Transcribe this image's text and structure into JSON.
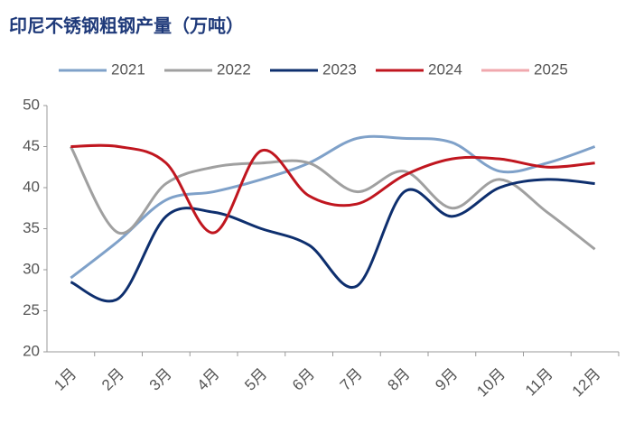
{
  "chart_data": {
    "type": "line",
    "title": "印尼不锈钢粗钢产量（万吨）",
    "categories": [
      "1月",
      "2月",
      "3月",
      "4月",
      "5月",
      "6月",
      "7月",
      "8月",
      "9月",
      "10月",
      "11月",
      "12月"
    ],
    "series": [
      {
        "name": "2021",
        "color": "#7fa1c9",
        "values": [
          29,
          33.5,
          38.5,
          39.5,
          41,
          43,
          46,
          46,
          45.5,
          42,
          43,
          45
        ]
      },
      {
        "name": "2022",
        "color": "#a0a0a0",
        "values": [
          45,
          34.5,
          40.5,
          42.5,
          43,
          43,
          39.5,
          42,
          37.5,
          41,
          37,
          32.5
        ]
      },
      {
        "name": "2023",
        "color": "#0e2f6e",
        "values": [
          28.5,
          26.5,
          36.5,
          37,
          35,
          33,
          28,
          39.5,
          36.5,
          40,
          41,
          40.5
        ]
      },
      {
        "name": "2024",
        "color": "#c0161f",
        "values": [
          45,
          45,
          43,
          34.5,
          44.5,
          39,
          38,
          41.5,
          43.5,
          43.5,
          42.5,
          43
        ]
      },
      {
        "name": "2025",
        "color": "#f0a8ae",
        "values": [
          null,
          null,
          null,
          null,
          null,
          null,
          null,
          null,
          null,
          null,
          null,
          null
        ]
      }
    ],
    "ylim": [
      20,
      50
    ],
    "yticks": [
      20,
      25,
      30,
      35,
      40,
      45,
      50
    ],
    "grid": false,
    "legend": "top"
  }
}
